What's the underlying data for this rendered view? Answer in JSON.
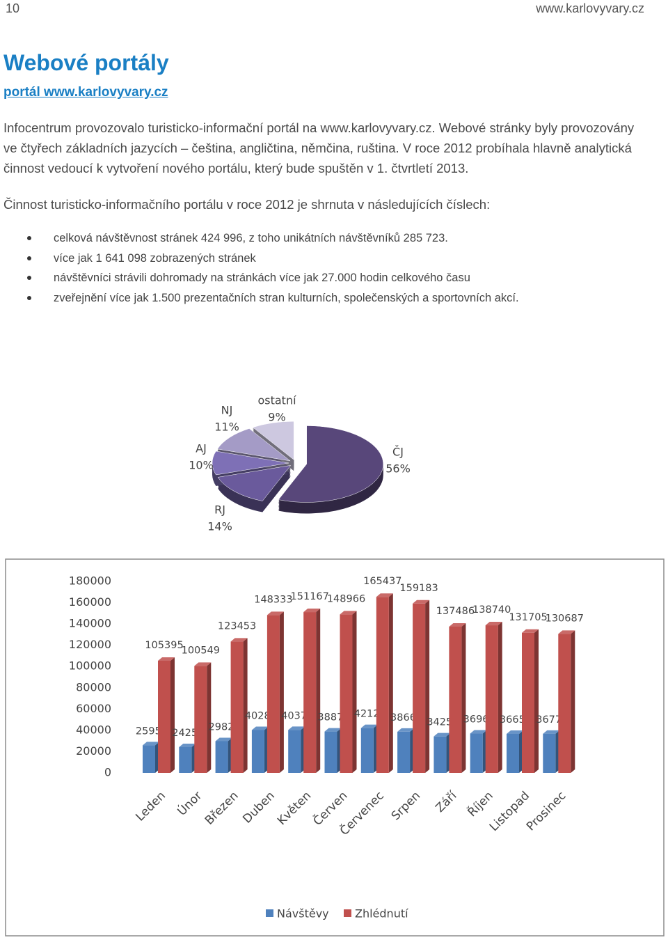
{
  "header": {
    "page_number": "10",
    "url": "www.karlovyvary.cz"
  },
  "title": "Webové portály",
  "subtitle": "portál www.karlovyvary.cz",
  "paragraphs": [
    "Infocentrum provozovalo turisticko-informační portál na www.karlovyvary.cz. Webové stránky byly provozovány ve čtyřech základních jazycích – čeština, angličtina, němčina, ruština. V roce 2012 probíhala hlavně analytická činnost vedoucí k vytvoření nového portálu, který bude spuštěn v 1. čtvrtletí 2013.",
    "Činnost turisticko-informačního portálu v roce  2012 je shrnuta v následujících číslech:"
  ],
  "bullets": [
    "celková návštěvnost stránek 424 996, z toho unikátních návštěvníků 285 723.",
    "více jak 1 641 098 zobrazených stránek",
    "návštěvníci strávili dohromady na stránkách více jak 27.000 hodin celkového času",
    "zveřejnění více jak 1.500 prezentačních stran kulturních, společenských a sportovních akcí."
  ],
  "chart_data": [
    {
      "type": "pie",
      "categories": [
        "ČJ",
        "RJ",
        "AJ",
        "NJ",
        "ostatní"
      ],
      "values": [
        56,
        14,
        10,
        11,
        9
      ],
      "value_labels": [
        "56%",
        "14%",
        "10%",
        "11%",
        "9%"
      ],
      "colors": [
        "#58477a",
        "#6a5a9c",
        "#7e70b6",
        "#a49bc6",
        "#cdc8e0"
      ]
    },
    {
      "type": "bar3d",
      "categories": [
        "Leden",
        "Únor",
        "Březen",
        "Duben",
        "Květen",
        "Červen",
        "Červenec",
        "Srpen",
        "Září",
        "Říjen",
        "Listopad",
        "Prosinec"
      ],
      "series": [
        {
          "name": "Návštěvy",
          "color": "#4f81bd",
          "values": [
            25957,
            24255,
            29822,
            40282,
            40373,
            38871,
            42126,
            38666,
            34252,
            36961,
            36655,
            36776
          ]
        },
        {
          "name": "Zhlédnutí",
          "color": "#c0504d",
          "values": [
            105395,
            100549,
            123453,
            148333,
            151167,
            148966,
            165437,
            159183,
            137486,
            138740,
            131705,
            130687
          ]
        }
      ],
      "ylim": [
        0,
        180000
      ],
      "yticks": [
        0,
        20000,
        40000,
        60000,
        80000,
        100000,
        120000,
        140000,
        160000,
        180000
      ],
      "legend": "bottom"
    }
  ]
}
